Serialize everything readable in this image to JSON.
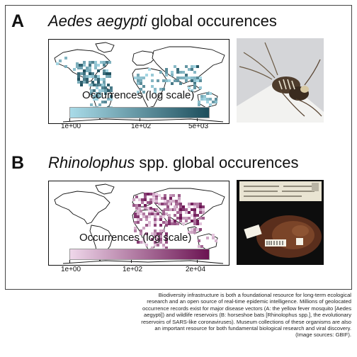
{
  "panels": [
    {
      "letter": "A",
      "taxon": "Aedes aegypti",
      "title_rest": " global occurences",
      "legend_title": "Occurrences (log scale)",
      "ticks": [
        "1e+00",
        "1e+02",
        "5e+03"
      ],
      "color_low": "#a9dbe8",
      "color_high": "#1d4e5c"
    },
    {
      "letter": "B",
      "taxon": "Rhinolophus",
      "title_rest": " spp. global occurences",
      "legend_title": "Occurrences (log scale)",
      "ticks": [
        "1e+00",
        "1e+02",
        "2e+04"
      ],
      "color_low": "#efd7ea",
      "color_high": "#6b1352"
    }
  ],
  "photos": {
    "mosquito": "mosquito-photo",
    "bat_specimen": "bat-specimen-photo"
  },
  "caption": "Biodiversity infrastructure is both a foundational resource for long-term ecological research and an open source of real-time epidemic intelligence. Millions of geolocated occurrence records exist for major disease vectors (A: the yellow fever mosquito [Aedes aegypti]) and wildlife reservoirs (B: horseshoe bats [Rhinolophus spp.], the evolutionary reservoirs of SARS-like coronaviruses). Museum collections of these organisms are also an important resource for both fundamental biological research and viral discovery. (Image sources: GBIF)."
}
